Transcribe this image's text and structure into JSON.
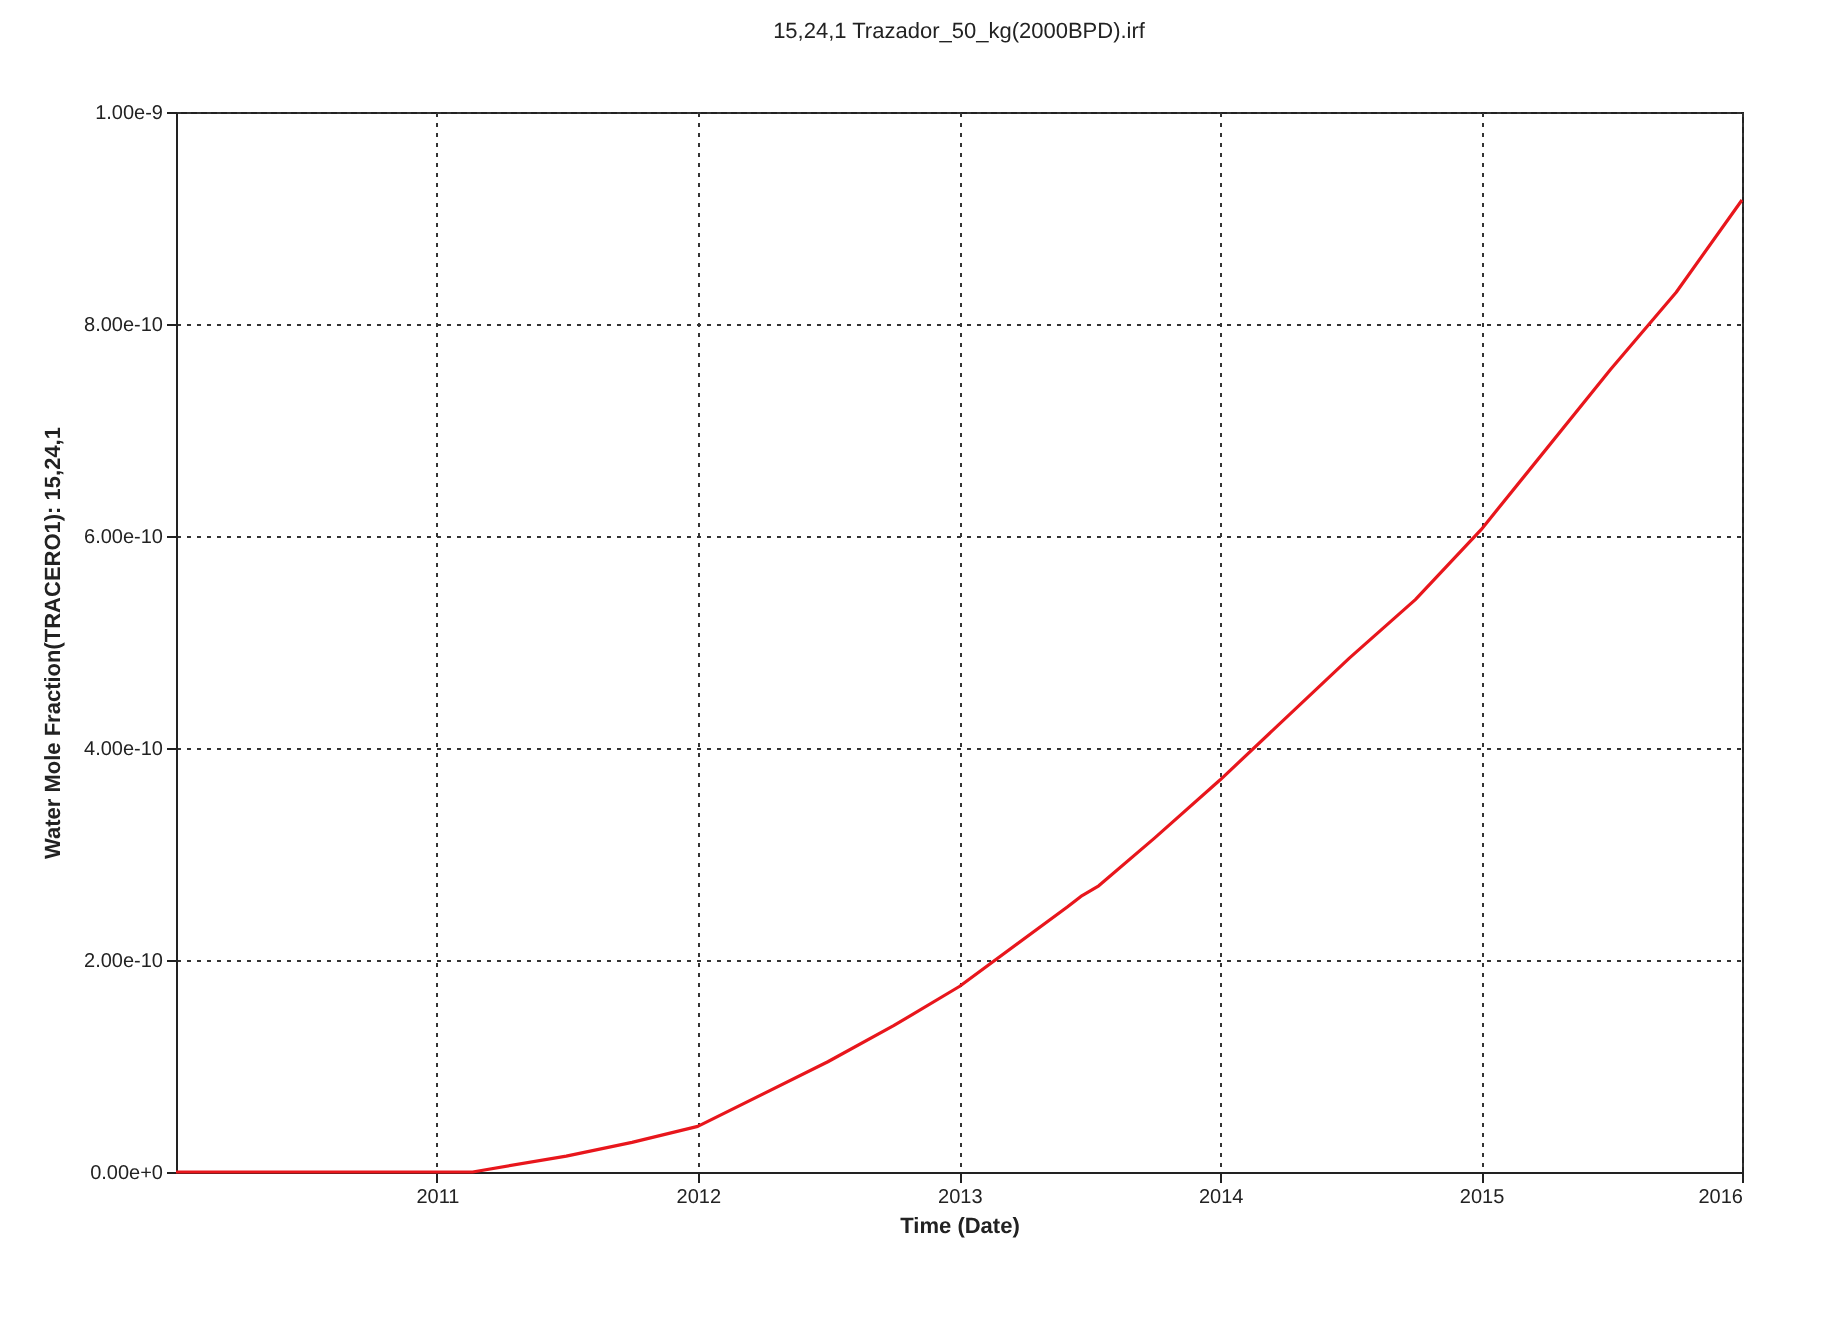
{
  "chart_data": {
    "type": "line",
    "title": "15,24,1 Trazador_50_kg(2000BPD).irf",
    "xlabel": "Time (Date)",
    "ylabel": "Water Mole Fraction(TRACERO1): 15,24,1",
    "x": [
      "2010-01-01",
      "2011-02-20",
      "2011-07-01",
      "2011-10-01",
      "2012-01-01",
      "2012-07-01",
      "2012-10-01",
      "2013-01-01",
      "2013-06-01",
      "2013-06-20",
      "2013-07-15",
      "2013-10-01",
      "2014-01-01",
      "2014-07-01",
      "2014-10-01",
      "2015-01-01",
      "2015-07-01",
      "2015-10-01",
      "2016-01-01"
    ],
    "series": [
      {
        "color": "#e8161c",
        "values": [
          0,
          0,
          1.5e-11,
          2.8e-11,
          4.3e-11,
          1.04e-10,
          1.38e-10,
          1.75e-10,
          2.5e-10,
          2.6e-10,
          2.7e-10,
          3.15e-10,
          3.7e-10,
          4.85e-10,
          5.4e-10,
          6.06e-10,
          7.57e-10,
          8.3e-10,
          9.17e-10
        ]
      }
    ],
    "xlim": [
      "2010-01-01",
      "2016-01-01"
    ],
    "xticks": [
      "2011",
      "2012",
      "2013",
      "2014",
      "2015",
      "2016"
    ],
    "ylim": [
      0,
      1e-09
    ],
    "yticks": [
      {
        "value": 0,
        "label": "0.00e+0"
      },
      {
        "value": 2e-10,
        "label": "2.00e-10"
      },
      {
        "value": 4e-10,
        "label": "4.00e-10"
      },
      {
        "value": 6e-10,
        "label": "6.00e-10"
      },
      {
        "value": 8e-10,
        "label": "8.00e-10"
      },
      {
        "value": 1e-09,
        "label": "1.00e-9"
      }
    ],
    "grid": true,
    "line_style": "solid"
  }
}
